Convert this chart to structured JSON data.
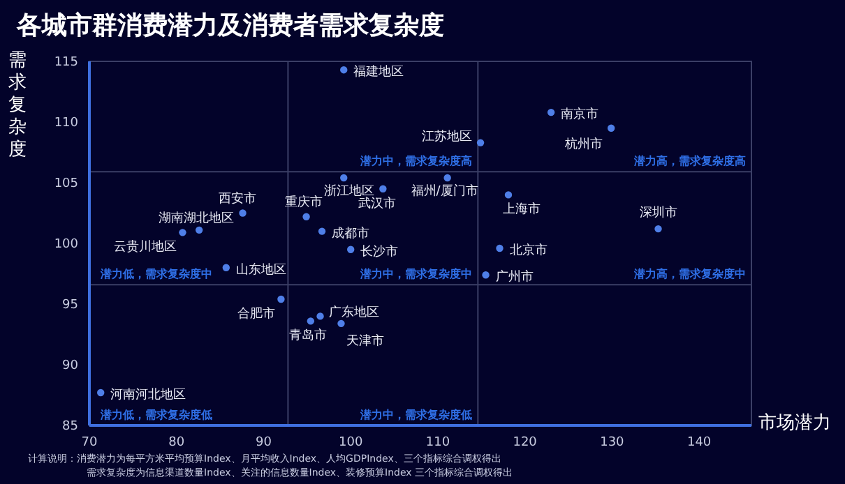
{
  "chart_data": {
    "type": "scatter",
    "title": "各城市群消费潜力及消费者需求复杂度",
    "xlabel": "市场潜力",
    "ylabel": "需求复杂度",
    "x": [
      99.2,
      123.0,
      129.9,
      114.9,
      99.2,
      111.1,
      103.7,
      118.1,
      87.6,
      94.9,
      82.6,
      80.7,
      96.7,
      135.3,
      100.0,
      117.1,
      85.7,
      115.5,
      92.0,
      96.5,
      95.4,
      98.9,
      71.3
    ],
    "series": [
      {
        "color": "#4f7fe8",
        "values": [
          114.3,
          110.8,
          109.5,
          108.3,
          105.4,
          105.4,
          104.5,
          104.0,
          102.5,
          102.2,
          101.1,
          100.9,
          101.0,
          101.2,
          99.5,
          99.6,
          98.0,
          97.4,
          95.4,
          94.0,
          93.6,
          93.4,
          87.7
        ]
      }
    ],
    "xlim": [
      70,
      146
    ],
    "xticks": [
      70,
      80,
      90,
      100,
      110,
      120,
      130,
      140
    ],
    "ylim": [
      85,
      115
    ],
    "yticks": [
      85,
      90,
      95,
      100,
      105,
      110,
      115
    ],
    "marker": "circle",
    "ref_lines": [
      {
        "axis": "x",
        "value": 92.8,
        "color": "#3b3f66"
      },
      {
        "axis": "x",
        "value": 114.6,
        "color": "#3b3f66"
      },
      {
        "axis": "y",
        "value": 105.9,
        "color": "#3b3f66"
      },
      {
        "axis": "y",
        "value": 96.6,
        "color": "#3b3f66"
      }
    ],
    "annotations": [
      {
        "text": "福建地区",
        "x": 99.2,
        "y": 114.3
      },
      {
        "text": "南京市",
        "x": 123.0,
        "y": 110.8
      },
      {
        "text": "杭州市",
        "x": 129.9,
        "y": 109.5
      },
      {
        "text": "江苏地区",
        "x": 114.9,
        "y": 108.3
      },
      {
        "text": "浙江地区",
        "x": 99.2,
        "y": 105.4
      },
      {
        "text": "福州/厦门市",
        "x": 111.1,
        "y": 105.4
      },
      {
        "text": "武汉市",
        "x": 103.7,
        "y": 104.5
      },
      {
        "text": "上海市",
        "x": 118.1,
        "y": 104.0
      },
      {
        "text": "西安市",
        "x": 87.6,
        "y": 102.5
      },
      {
        "text": "重庆市",
        "x": 94.9,
        "y": 102.2
      },
      {
        "text": "湖南湖北地区",
        "x": 82.6,
        "y": 101.1
      },
      {
        "text": "云贵川地区",
        "x": 80.7,
        "y": 100.9
      },
      {
        "text": "成都市",
        "x": 96.7,
        "y": 101.0
      },
      {
        "text": "深圳市",
        "x": 135.3,
        "y": 101.2
      },
      {
        "text": "长沙市",
        "x": 100.0,
        "y": 99.5
      },
      {
        "text": "北京市",
        "x": 117.1,
        "y": 99.6
      },
      {
        "text": "山东地区",
        "x": 85.7,
        "y": 98.0
      },
      {
        "text": "广州市",
        "x": 115.5,
        "y": 97.4
      },
      {
        "text": "合肥市",
        "x": 92.0,
        "y": 95.4
      },
      {
        "text": "广东地区",
        "x": 96.5,
        "y": 94.0
      },
      {
        "text": "青岛市",
        "x": 95.4,
        "y": 93.6
      },
      {
        "text": "天津市",
        "x": 98.9,
        "y": 93.4
      },
      {
        "text": "河南河北地区",
        "x": 71.3,
        "y": 87.7
      },
      "潜力中，需求复杂度高",
      "潜力高，需求复杂度高",
      "潜力低，需求复杂度中",
      "潜力中，需求复杂度中",
      "潜力高，需求复杂度中",
      "潜力低，需求复杂度低",
      "潜力中，需求复杂度低",
      "计算说明：消费潜力为每平方米平均预算Index、月平均收入Index、人均GDPIndex、三个指标综合调权得出",
      "需求复杂度为信息渠道数量Index、关注的信息数量Index、装修预算Index 三个指标综合调权得出"
    ]
  }
}
